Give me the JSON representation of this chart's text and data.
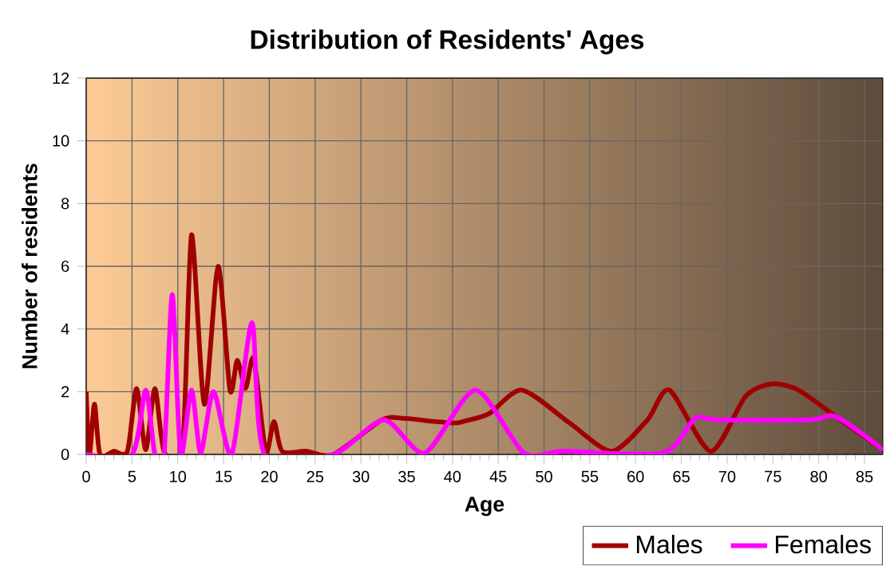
{
  "chart_data": {
    "type": "line",
    "title": "Distribution of Residents' Ages",
    "xlabel": "Age",
    "ylabel": "Number of residents",
    "xlim": [
      0,
      87
    ],
    "xticks": [
      0,
      5,
      10,
      15,
      20,
      25,
      30,
      35,
      40,
      45,
      50,
      55,
      60,
      65,
      70,
      75,
      80,
      85
    ],
    "ylim": [
      0,
      12
    ],
    "yticks": [
      0,
      2,
      4,
      6,
      8,
      10,
      12
    ],
    "grid": true,
    "legend": "bottom right",
    "series": [
      {
        "name": "Males",
        "color": "#a00000",
        "x": [
          0,
          0.35,
          0.9,
          1.5,
          3,
          4.5,
          5.5,
          6.5,
          7.5,
          8.5,
          10.5,
          11.5,
          12.9,
          14.4,
          15.7,
          16.5,
          17.4,
          18.3,
          19.6,
          20.5,
          21.4,
          24,
          27,
          32.3,
          34.6,
          38,
          40.3,
          41.2,
          44,
          47.6,
          52.8,
          57.4,
          61.3,
          63.7,
          68.2,
          72,
          74.9,
          77.8,
          81.9,
          87
        ],
        "values": [
          2.0,
          0,
          1.6,
          0,
          0.1,
          0.1,
          2.1,
          0.15,
          2.1,
          0.1,
          0.1,
          7.0,
          1.6,
          6.0,
          2.05,
          3.0,
          2.1,
          3.05,
          0.1,
          1.05,
          0.1,
          0.1,
          0,
          1.1,
          1.15,
          1.05,
          1.0,
          1.05,
          1.3,
          2.05,
          1.0,
          0.1,
          1.1,
          2.05,
          0.1,
          1.85,
          2.25,
          2.05,
          1.2,
          0.15
        ]
      },
      {
        "name": "Females",
        "color": "#ff00ff",
        "x": [
          0,
          5,
          6.5,
          7.5,
          8.5,
          9.4,
          10.3,
          11.5,
          12.5,
          13.9,
          15.9,
          18.1,
          19.5,
          27,
          32.5,
          37,
          42.5,
          47.8,
          52.2,
          63,
          66.5,
          69.1,
          79,
          81.9,
          87
        ],
        "values": [
          0,
          0,
          2.05,
          0,
          0,
          5.1,
          0,
          2.05,
          0.05,
          2.0,
          0,
          4.2,
          0,
          0,
          1.1,
          0.05,
          2.05,
          0.05,
          0.1,
          0.05,
          1.15,
          1.1,
          1.1,
          1.2,
          0.15
        ]
      }
    ]
  }
}
